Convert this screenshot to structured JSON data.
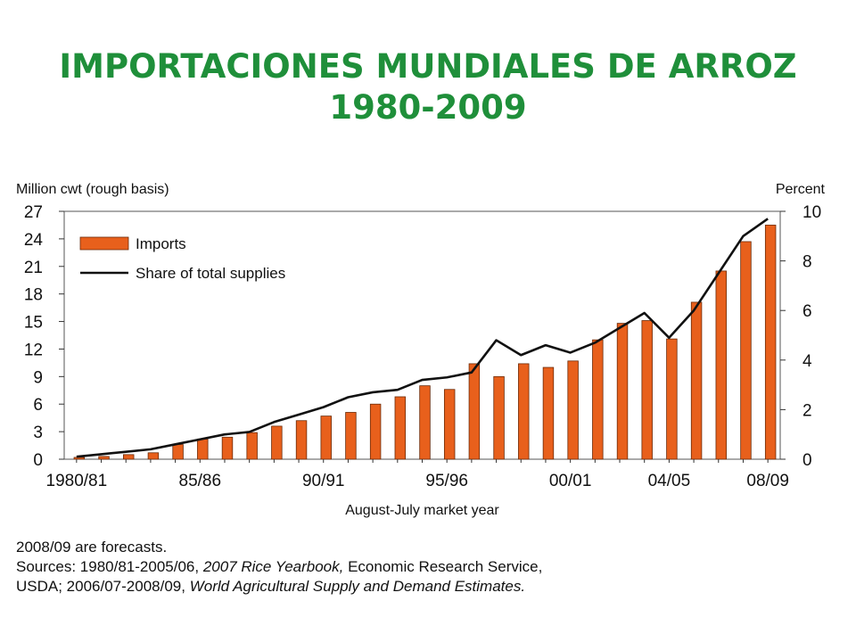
{
  "page": {
    "title_line1": "IMPORTACIONES MUNDIALES DE ARROZ",
    "title_line2": "1980-2009"
  },
  "chart_data": {
    "type": "bar",
    "left_axis_label": "Million cwt (rough basis)",
    "right_axis_label": "Percent",
    "xlabel": "August-July market year",
    "ylim_left": [
      0,
      27
    ],
    "ylim_right": [
      0,
      10
    ],
    "left_ticks": [
      "0",
      "3",
      "6",
      "9",
      "12",
      "15",
      "18",
      "21",
      "24",
      "27"
    ],
    "right_ticks": [
      "0",
      "2",
      "4",
      "6",
      "8",
      "10"
    ],
    "x_tick_labels": [
      "1980/81",
      "85/86",
      "90/91",
      "95/96",
      "00/01",
      "04/05",
      "08/09"
    ],
    "x_tick_indices": [
      0,
      5,
      10,
      15,
      20,
      24,
      28
    ],
    "legend_placement": "top-left",
    "categories": [
      "1980/81",
      "81/82",
      "82/83",
      "83/84",
      "84/85",
      "85/86",
      "86/87",
      "87/88",
      "88/89",
      "89/90",
      "90/91",
      "91/92",
      "92/93",
      "93/94",
      "94/95",
      "95/96",
      "96/97",
      "97/98",
      "98/99",
      "99/00",
      "00/01",
      "01/02",
      "02/03",
      "03/04",
      "04/05",
      "05/06",
      "06/07",
      "07/08",
      "08/09"
    ],
    "series": [
      {
        "name": "Imports",
        "axis": "left",
        "kind": "bar",
        "color": "#e8601c",
        "values": [
          0.2,
          0.3,
          0.5,
          0.7,
          1.6,
          2.2,
          2.4,
          2.9,
          3.6,
          4.2,
          4.7,
          5.1,
          6.0,
          6.8,
          8.0,
          7.6,
          10.4,
          9.0,
          10.4,
          10.0,
          10.7,
          13.0,
          14.8,
          15.1,
          13.1,
          17.1,
          20.5,
          23.7,
          25.5
        ]
      },
      {
        "name": "Share of total supplies",
        "axis": "right",
        "kind": "line",
        "color": "#111111",
        "values": [
          0.1,
          0.2,
          0.3,
          0.4,
          0.6,
          0.8,
          1.0,
          1.1,
          1.5,
          1.8,
          2.1,
          2.5,
          2.7,
          2.8,
          3.2,
          3.3,
          3.5,
          4.8,
          4.2,
          4.6,
          4.3,
          4.7,
          5.3,
          5.9,
          4.9,
          6.0,
          7.5,
          9.0,
          9.7
        ]
      }
    ]
  },
  "notes": {
    "line1": "2008/09 are forecasts.",
    "line2a": "Sources: 1980/81-2005/06, ",
    "line2b": "2007 Rice Yearbook,",
    "line2c": " Economic Research Service,",
    "line3a": "USDA; 2006/07-2008/09, ",
    "line3b": "World Agricultural Supply and Demand Estimates."
  }
}
